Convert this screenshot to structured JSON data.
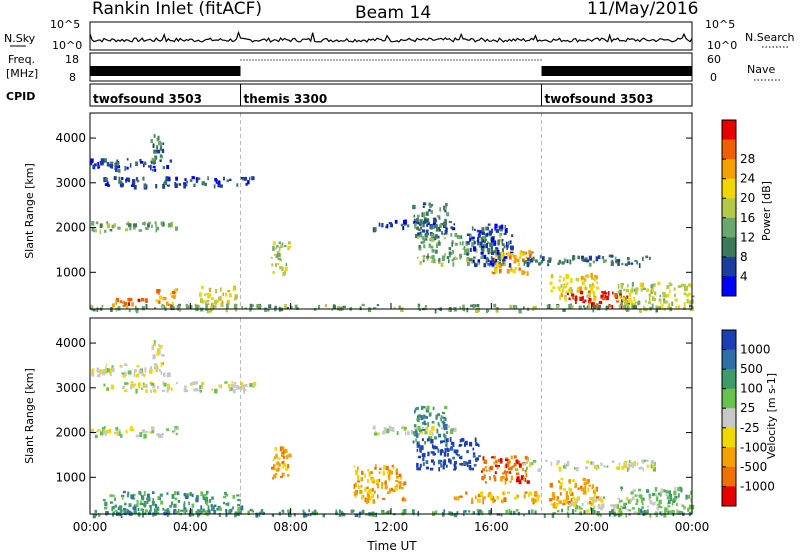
{
  "header": {
    "station": "Rankin Inlet (fitACF)",
    "beam": "Beam 14",
    "date": "11/May/2016"
  },
  "top_panels": {
    "nsky_label": "N.Sky",
    "nsky_ticks": [
      "10^5",
      "10^0"
    ],
    "nsearch_label": "N.Search",
    "nsearch_ticks": [
      "10^5",
      "10^0"
    ],
    "freq_label_1": "Freq.",
    "freq_label_2": "[MHz]",
    "freq_ticks": [
      "18",
      "8"
    ],
    "nave_label": "Nave",
    "nave_ticks": [
      "60",
      "0"
    ],
    "cpid_label": "CPID",
    "cpid_segments": [
      {
        "name": "twofsound 3503",
        "start_hour": 0,
        "end_hour": 6
      },
      {
        "name": "themis 3300",
        "start_hour": 6,
        "end_hour": 18
      },
      {
        "name": "twofsound 3503",
        "start_hour": 18,
        "end_hour": 24
      }
    ]
  },
  "chart_data": [
    {
      "type": "heatmap",
      "name": "power",
      "ylabel": "Slant Range [km]",
      "ylim": [
        180,
        4560
      ],
      "yticks": [
        1000,
        2000,
        3000,
        4000
      ],
      "xlim": [
        0,
        24
      ],
      "colorbar_label": "Power [dB]",
      "colorbar_ticks": [
        "4",
        "8",
        "12",
        "16",
        "20",
        "24",
        "28"
      ],
      "colors": [
        "#0000ff",
        "#1a3d9e",
        "#3d7a5c",
        "#6ba86b",
        "#b4c84a",
        "#f2d600",
        "#f5a000",
        "#f06000",
        "#e60000"
      ],
      "features": [
        {
          "t0": 0.0,
          "t1": 3.2,
          "r0": 3300,
          "r1": 3550,
          "level": 1
        },
        {
          "t0": 0.5,
          "t1": 6.5,
          "r0": 2950,
          "r1": 3150,
          "level": 1
        },
        {
          "t0": 2.4,
          "t1": 2.9,
          "r0": 3400,
          "r1": 4100,
          "level": 2
        },
        {
          "t0": 0.0,
          "t1": 3.5,
          "r0": 1950,
          "r1": 2150,
          "level": 3
        },
        {
          "t0": 0.8,
          "t1": 2.2,
          "r0": 250,
          "r1": 450,
          "level": 7
        },
        {
          "t0": 2.6,
          "t1": 3.4,
          "r0": 250,
          "r1": 650,
          "level": 6
        },
        {
          "t0": 4.3,
          "t1": 5.8,
          "r0": 300,
          "r1": 700,
          "level": 5
        },
        {
          "t0": 7.2,
          "t1": 7.9,
          "r0": 1000,
          "r1": 1700,
          "level": 4
        },
        {
          "t0": 11.2,
          "t1": 14.5,
          "r0": 2000,
          "r1": 2200,
          "level": 1
        },
        {
          "t0": 12.8,
          "t1": 14.2,
          "r0": 1800,
          "r1": 2600,
          "level": 2
        },
        {
          "t0": 13.0,
          "t1": 16.5,
          "r0": 1200,
          "r1": 1900,
          "level": 3
        },
        {
          "t0": 15.0,
          "t1": 16.8,
          "r0": 1200,
          "r1": 2100,
          "level": 1
        },
        {
          "t0": 16.0,
          "t1": 17.6,
          "r0": 1000,
          "r1": 1500,
          "level": 6
        },
        {
          "t0": 17.2,
          "t1": 22.5,
          "r0": 1200,
          "r1": 1400,
          "level": 2
        },
        {
          "t0": 18.3,
          "t1": 20.2,
          "r0": 400,
          "r1": 1000,
          "level": 5
        },
        {
          "t0": 19.0,
          "t1": 21.4,
          "r0": 250,
          "r1": 600,
          "level": 8
        },
        {
          "t0": 21.0,
          "t1": 24.0,
          "r0": 200,
          "r1": 800,
          "level": 4
        },
        {
          "t0": 0.0,
          "t1": 24.0,
          "r0": 180,
          "r1": 300,
          "level": 3
        }
      ]
    },
    {
      "type": "heatmap",
      "name": "velocity",
      "ylabel": "Slant Range [km]",
      "ylim": [
        180,
        4560
      ],
      "yticks": [
        1000,
        2000,
        3000,
        4000
      ],
      "xlim": [
        0,
        24
      ],
      "xticks": [
        "00:00",
        "04:00",
        "08:00",
        "12:00",
        "16:00",
        "20:00",
        "00:00"
      ],
      "xlabel": "Time UT",
      "colorbar_label": "Velocity [m s-1]",
      "colorbar_ticks": [
        "1000",
        "500",
        "100",
        "25",
        "-25",
        "-100",
        "-500",
        "-1000"
      ],
      "colors": [
        "#1a3fb5",
        "#2e6fa8",
        "#3f9a6a",
        "#66c24a",
        "#c8c8c8",
        "#f0d800",
        "#f5a000",
        "#f07000",
        "#e60000"
      ],
      "features": [
        {
          "t0": 0.0,
          "t1": 3.2,
          "r0": 3300,
          "r1": 3550,
          "level": 4
        },
        {
          "t0": 0.5,
          "t1": 6.5,
          "r0": 2950,
          "r1": 3150,
          "level": 4
        },
        {
          "t0": 2.4,
          "t1": 2.9,
          "r0": 3400,
          "r1": 4100,
          "level": 4
        },
        {
          "t0": 0.0,
          "t1": 3.5,
          "r0": 1950,
          "r1": 2150,
          "level": 4
        },
        {
          "t0": 0.5,
          "t1": 6.0,
          "r0": 200,
          "r1": 700,
          "level": 2
        },
        {
          "t0": 7.2,
          "t1": 8.0,
          "r0": 1000,
          "r1": 1700,
          "level": 6
        },
        {
          "t0": 11.2,
          "t1": 14.5,
          "r0": 2000,
          "r1": 2200,
          "level": 4
        },
        {
          "t0": 12.8,
          "t1": 14.2,
          "r0": 1800,
          "r1": 2600,
          "level": 2
        },
        {
          "t0": 13.0,
          "t1": 15.5,
          "r0": 1200,
          "r1": 1900,
          "level": 0
        },
        {
          "t0": 10.5,
          "t1": 12.5,
          "r0": 500,
          "r1": 1300,
          "level": 6
        },
        {
          "t0": 15.5,
          "t1": 17.5,
          "r0": 900,
          "r1": 1500,
          "level": 7
        },
        {
          "t0": 14.5,
          "t1": 18.0,
          "r0": 500,
          "r1": 700,
          "level": 6
        },
        {
          "t0": 17.2,
          "t1": 22.5,
          "r0": 1200,
          "r1": 1400,
          "level": 4
        },
        {
          "t0": 18.3,
          "t1": 20.2,
          "r0": 400,
          "r1": 1000,
          "level": 6
        },
        {
          "t0": 19.0,
          "t1": 21.4,
          "r0": 250,
          "r1": 600,
          "level": 4
        },
        {
          "t0": 21.0,
          "t1": 24.0,
          "r0": 200,
          "r1": 800,
          "level": 3
        },
        {
          "t0": 0.0,
          "t1": 24.0,
          "r0": 180,
          "r1": 300,
          "level": 2
        }
      ]
    }
  ]
}
